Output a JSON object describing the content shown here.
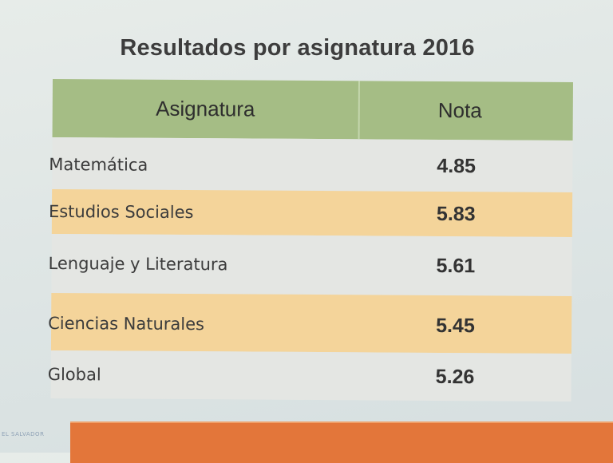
{
  "title": "Resultados por asignatura 2016",
  "table": {
    "headers": {
      "subject": "Asignatura",
      "score": "Nota"
    },
    "rows": [
      {
        "subject": "Matemática",
        "score": "4.85"
      },
      {
        "subject": "Estudios Sociales",
        "score": "5.83"
      },
      {
        "subject": "Lenguaje y Literatura",
        "score": "5.61"
      },
      {
        "subject": "Ciencias Naturales",
        "score": "5.45"
      },
      {
        "subject": "Global",
        "score": "5.26"
      }
    ]
  },
  "corner_logo": "EL SALVADOR",
  "colors": {
    "header": "#a5bd85",
    "band": "#f4d49a",
    "row": "#e4e6e3",
    "bottom_bar": "#e3763a"
  }
}
